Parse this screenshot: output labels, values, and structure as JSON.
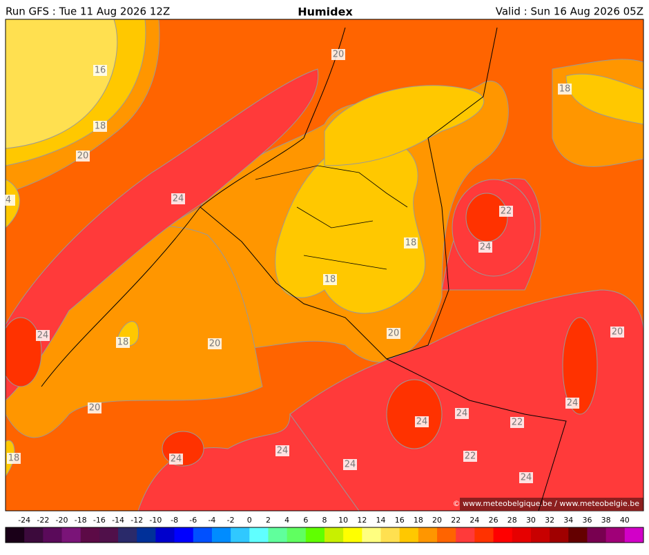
{
  "header": {
    "run": "Run GFS : Tue 11 Aug 2026 12Z",
    "title": "Humidex",
    "valid": "Valid : Sun 16 Aug 2026 05Z"
  },
  "map": {
    "contour_labels": [
      16,
      18,
      20,
      4,
      24,
      20,
      18,
      22,
      24,
      18,
      18,
      24,
      18,
      20,
      20,
      20,
      20,
      24,
      24,
      24,
      22,
      18,
      24,
      24,
      24,
      22,
      24
    ],
    "credit": "© www.meteobelgique.be / www.meteobelgie.be"
  },
  "colorbar": {
    "labels": [
      -24,
      -22,
      -20,
      -18,
      -16,
      -14,
      -12,
      -10,
      -8,
      -6,
      -4,
      -2,
      0,
      2,
      4,
      6,
      8,
      10,
      12,
      14,
      16,
      18,
      20,
      22,
      24,
      26,
      28,
      30,
      32,
      34,
      36,
      38,
      40
    ],
    "colors": [
      "#1a0018",
      "#3c0a3c",
      "#5a0a5a",
      "#7a1478",
      "#5c0a46",
      "#50104a",
      "#2a2a6a",
      "#003099",
      "#0000cc",
      "#0000ff",
      "#0050ff",
      "#008cff",
      "#30c8ff",
      "#60ffff",
      "#60ff9c",
      "#60ff60",
      "#60ff00",
      "#c8f000",
      "#ffff00",
      "#ffff80",
      "#ffe050",
      "#ffc800",
      "#ff9600",
      "#ff6400",
      "#ff3a3a",
      "#ff3200",
      "#ff0000",
      "#e60000",
      "#c80000",
      "#a00000",
      "#640000",
      "#780050",
      "#a00078",
      "#d200c8"
    ]
  }
}
